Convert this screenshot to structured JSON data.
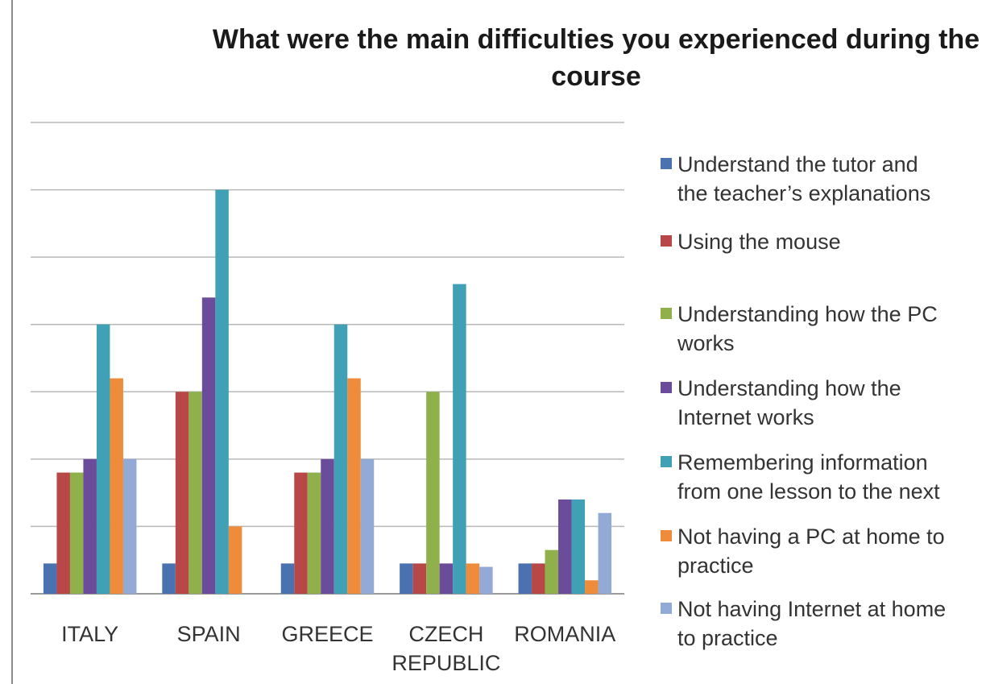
{
  "chart_data": {
    "type": "bar",
    "title": "What were the main difficulties you experienced during the course",
    "xlabel": "",
    "ylabel": "",
    "ylim": [
      0,
      7
    ],
    "grid": true,
    "legend_position": "right",
    "categories": [
      "ITALY",
      "SPAIN",
      "GREECE",
      "CZECH REPUBLIC",
      "ROMANIA"
    ],
    "series": [
      {
        "name": "Understand the tutor and the teacher’s explanations",
        "color": "#4a72b0",
        "values": [
          0.45,
          0.45,
          0.45,
          0.45,
          0.45
        ]
      },
      {
        "name": "Using the mouse",
        "color": "#b84848",
        "values": [
          1.8,
          3.0,
          1.8,
          0.45,
          0.45
        ]
      },
      {
        "name": "Understanding how the PC works",
        "color": "#8fb04a",
        "values": [
          1.8,
          3.0,
          1.8,
          3.0,
          0.65
        ]
      },
      {
        "name": "Understanding how the Internet works",
        "color": "#6a4c9a",
        "values": [
          2.0,
          4.4,
          2.0,
          0.45,
          1.4
        ]
      },
      {
        "name": "Remembering information from one lesson to the next",
        "color": "#3fa0b6",
        "values": [
          4.0,
          6.0,
          4.0,
          4.6,
          1.4
        ]
      },
      {
        "name": "Not having a PC at home to practice",
        "color": "#ee8c3c",
        "values": [
          3.2,
          1.0,
          3.2,
          0.45,
          0.2
        ]
      },
      {
        "name": "Not having Internet at home to practice",
        "color": "#93a9d6",
        "values": [
          2.0,
          0,
          2.0,
          0.4,
          1.2
        ]
      }
    ]
  }
}
